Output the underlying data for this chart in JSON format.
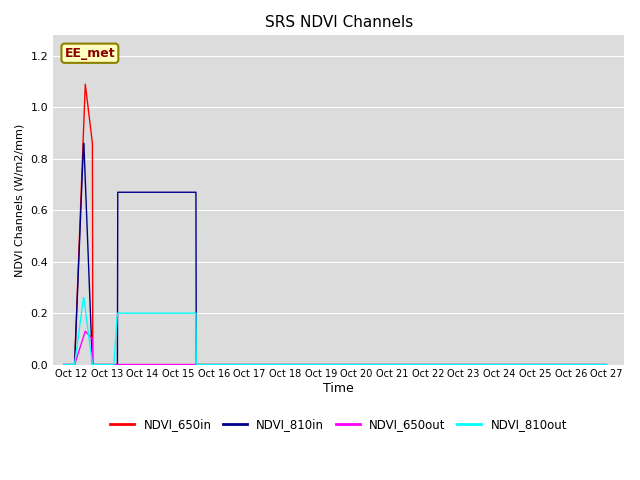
{
  "title": "SRS NDVI Channels",
  "xlabel": "Time",
  "ylabel": "NDVI Channels (W/m2/mm)",
  "annotation": "EE_met",
  "ylim": [
    0.0,
    1.28
  ],
  "yticks": [
    0.0,
    0.2,
    0.4,
    0.6,
    0.8,
    1.0,
    1.2
  ],
  "background_color": "#dcdcdc",
  "plot_bg": "#dcdcdc",
  "legend_entries": [
    "NDVI_650in",
    "NDVI_810in",
    "NDVI_650out",
    "NDVI_810out"
  ],
  "line_colors": [
    "#ff0000",
    "#00008b",
    "#ff00ff",
    "#00ffff"
  ],
  "xtick_labels": [
    "Oct 1",
    "2Oct 13",
    "Oct 14",
    "Oct 15",
    "Oct 16",
    "Oct 17",
    "Oct 18",
    "Oct 19",
    "Oct 20",
    "Oct 21",
    "Oct 22",
    "Oct 23",
    "Oct 24",
    "Oct 25",
    "Oct 26",
    "Oct 27"
  ],
  "series": {
    "NDVI_650in": {
      "x": [
        11.8,
        11.81,
        12.1,
        12.4,
        12.6,
        12.61,
        12.8,
        12.9,
        13.0,
        13.1,
        13.2,
        13.3,
        13.4,
        14.0,
        14.5,
        15.0,
        16.0,
        17.0,
        18.0,
        19.0,
        20.0,
        21.0,
        22.0,
        23.0,
        24.0,
        25.0,
        26.0,
        27.0
      ],
      "y": [
        0.0,
        0.0,
        0.0,
        1.09,
        0.86,
        0.0,
        0.0,
        0.0,
        0.0,
        0.0,
        0.0,
        0.0,
        0.0,
        0.0,
        0.0,
        0.0,
        0.0,
        0.0,
        0.0,
        0.0,
        0.0,
        0.0,
        0.0,
        0.0,
        0.0,
        0.0,
        0.0,
        0.0
      ]
    },
    "NDVI_810in": {
      "x": [
        11.8,
        11.81,
        12.1,
        12.35,
        12.36,
        12.6,
        12.61,
        13.3,
        13.31,
        13.5,
        14.0,
        14.5,
        15.0,
        15.5,
        15.51,
        16.0,
        17.0,
        18.0,
        19.0,
        20.0,
        21.0,
        22.0,
        23.0,
        24.0,
        25.0,
        26.0,
        27.0
      ],
      "y": [
        0.0,
        0.0,
        0.0,
        0.86,
        0.86,
        0.0,
        0.0,
        0.0,
        0.67,
        0.67,
        0.67,
        0.67,
        0.67,
        0.67,
        0.0,
        0.0,
        0.0,
        0.0,
        0.0,
        0.0,
        0.0,
        0.0,
        0.0,
        0.0,
        0.0,
        0.0,
        0.0
      ]
    },
    "NDVI_650out": {
      "x": [
        11.8,
        11.81,
        12.1,
        12.4,
        12.6,
        12.61,
        12.8,
        12.85,
        12.9,
        13.0,
        13.1,
        13.2,
        13.3,
        13.4,
        14.0,
        15.0,
        16.0,
        17.0,
        18.0,
        19.0,
        20.0,
        21.0,
        22.0,
        23.0,
        24.0,
        25.0,
        26.0,
        27.0
      ],
      "y": [
        0.0,
        0.0,
        0.0,
        0.13,
        0.1,
        0.0,
        0.0,
        0.0,
        0.0,
        0.0,
        0.0,
        0.0,
        0.0,
        0.0,
        0.0,
        0.0,
        0.0,
        0.0,
        0.0,
        0.0,
        0.0,
        0.0,
        0.0,
        0.0,
        0.0,
        0.0,
        0.0,
        0.0
      ]
    },
    "NDVI_810out": {
      "x": [
        11.8,
        11.81,
        12.1,
        12.35,
        12.36,
        12.6,
        12.61,
        12.7,
        12.8,
        12.9,
        13.0,
        13.1,
        13.2,
        13.3,
        13.31,
        13.5,
        14.0,
        14.5,
        15.0,
        15.5,
        15.51,
        16.0,
        17.0,
        18.0,
        19.0,
        20.0,
        21.0,
        22.0,
        23.0,
        24.0,
        25.0,
        26.0,
        27.0
      ],
      "y": [
        0.0,
        0.0,
        0.0,
        0.26,
        0.26,
        0.0,
        0.0,
        0.0,
        0.0,
        0.0,
        0.0,
        0.0,
        0.0,
        0.2,
        0.2,
        0.2,
        0.2,
        0.2,
        0.2,
        0.2,
        0.0,
        0.0,
        0.0,
        0.0,
        0.0,
        0.0,
        0.0,
        0.0,
        0.0,
        0.0,
        0.0,
        0.0,
        0.0
      ]
    }
  }
}
